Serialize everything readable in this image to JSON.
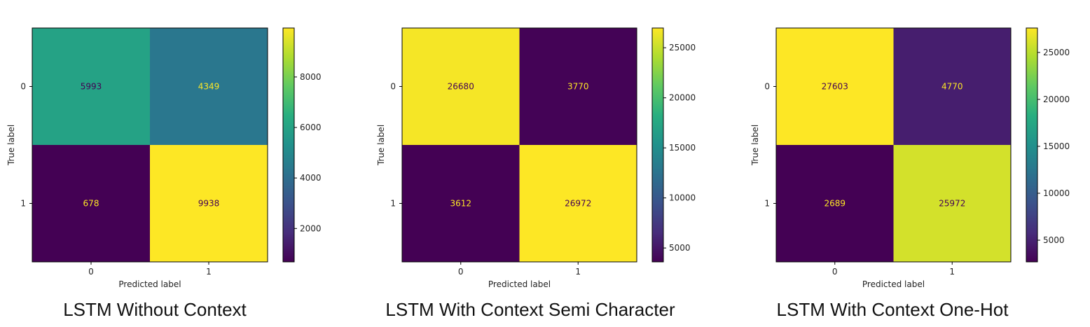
{
  "chart_data": [
    {
      "type": "heatmap",
      "title": "LSTM Without Context",
      "xlabel": "Predicted label",
      "ylabel": "True label",
      "x_categories": [
        "0",
        "1"
      ],
      "y_categories": [
        "0",
        "1"
      ],
      "values": [
        [
          5993,
          4349
        ],
        [
          678,
          9938
        ]
      ],
      "colormap": "viridis",
      "color_range": [
        678,
        9938
      ],
      "colorbar_ticks": [
        2000,
        4000,
        6000,
        8000
      ],
      "grid": false
    },
    {
      "type": "heatmap",
      "title": "LSTM With Context Semi Character",
      "xlabel": "Predicted label",
      "ylabel": "True label",
      "x_categories": [
        "0",
        "1"
      ],
      "y_categories": [
        "0",
        "1"
      ],
      "values": [
        [
          26680,
          3770
        ],
        [
          3612,
          26972
        ]
      ],
      "colormap": "viridis",
      "color_range": [
        3612,
        26972
      ],
      "colorbar_ticks": [
        5000,
        10000,
        15000,
        20000,
        25000
      ],
      "grid": false
    },
    {
      "type": "heatmap",
      "title": "LSTM With Context One-Hot",
      "xlabel": "Predicted label",
      "ylabel": "True label",
      "x_categories": [
        "0",
        "1"
      ],
      "y_categories": [
        "0",
        "1"
      ],
      "values": [
        [
          27603,
          4770
        ],
        [
          2689,
          25972
        ]
      ],
      "colormap": "viridis",
      "color_range": [
        2689,
        27603
      ],
      "colorbar_ticks": [
        5000,
        10000,
        15000,
        20000,
        25000
      ],
      "grid": false
    }
  ]
}
